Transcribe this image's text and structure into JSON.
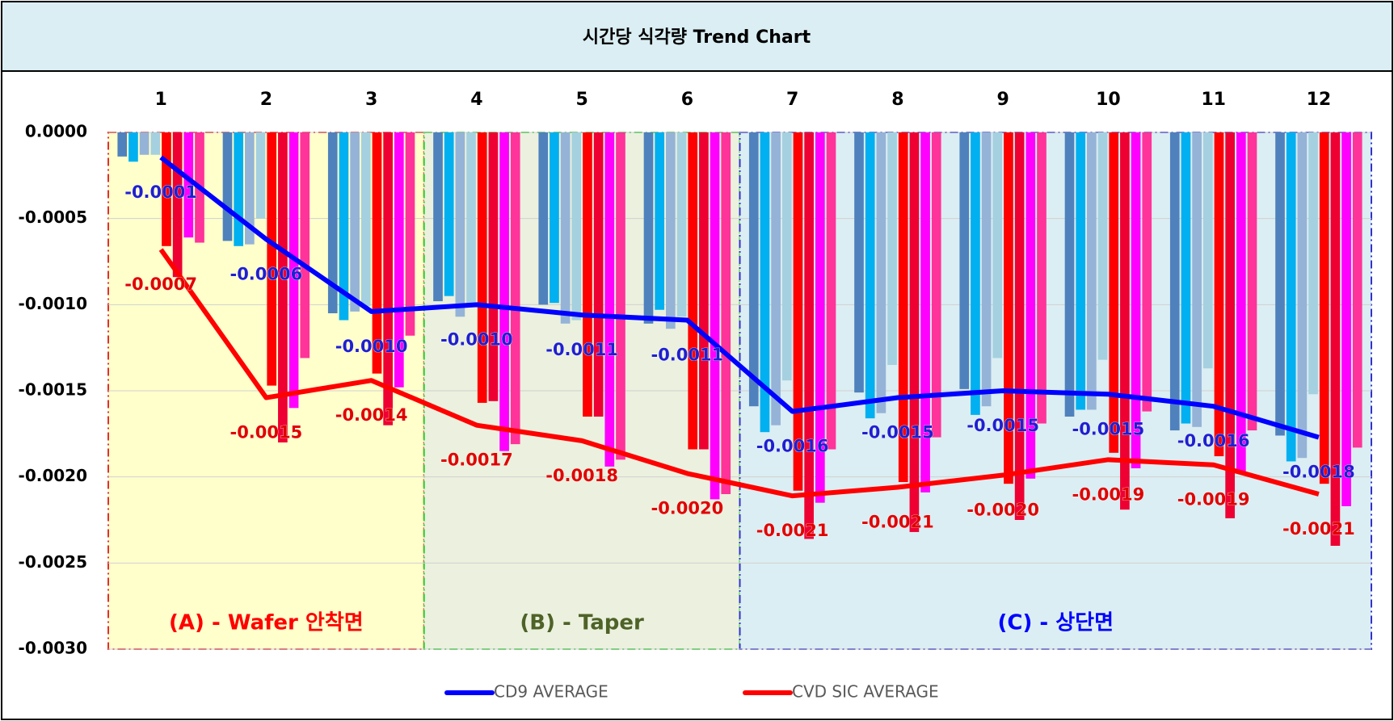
{
  "chart_data": {
    "type": "bar",
    "title": "시간당 식각량 Trend Chart",
    "categories": [
      "1",
      "2",
      "3",
      "4",
      "5",
      "6",
      "7",
      "8",
      "9",
      "10",
      "11",
      "12"
    ],
    "ylim": [
      -0.003,
      0
    ],
    "yticks": [
      {
        "value": 0,
        "label": "0.0000"
      },
      {
        "value": -0.0005,
        "label": "-0.0005"
      },
      {
        "value": -0.001,
        "label": "-0.0010"
      },
      {
        "value": -0.0015,
        "label": "-0.0015"
      },
      {
        "value": -0.002,
        "label": "-0.0020"
      },
      {
        "value": -0.0025,
        "label": "-0.0025"
      },
      {
        "value": -0.003,
        "label": "-0.0030"
      }
    ],
    "grid": true,
    "legend": "bottom",
    "regions": [
      {
        "label": "(A) - Wafer 안착면",
        "first": "1",
        "last": "3",
        "color": "#ff0000",
        "fill": "#ffffcc",
        "border": "#e03030"
      },
      {
        "label": "(B) - Taper",
        "first": "4",
        "last": "6",
        "color": "#4f6228",
        "fill": "#ebf1de",
        "border": "#33cc33"
      },
      {
        "label": "(C) - 상단면",
        "first": "7",
        "last": "12",
        "color": "#0000ff",
        "fill": "#dbeef3",
        "border": "#3333cc"
      }
    ],
    "series": [
      {
        "type": "bar",
        "color": "#4f81bd",
        "values": [
          -0.00014,
          -0.00063,
          -0.00105,
          -0.00098,
          -0.001,
          -0.00111,
          -0.00159,
          -0.00151,
          -0.00149,
          -0.00165,
          -0.00173,
          -0.00176
        ]
      },
      {
        "type": "bar",
        "color": "#00b0f0",
        "values": [
          -0.00017,
          -0.00066,
          -0.00109,
          -0.00095,
          -0.00099,
          -0.00103,
          -0.00174,
          -0.00166,
          -0.00164,
          -0.00161,
          -0.00169,
          -0.00191
        ]
      },
      {
        "type": "bar",
        "color": "#95b3d7",
        "values": [
          -0.00013,
          -0.00065,
          -0.00104,
          -0.00107,
          -0.00111,
          -0.00114,
          -0.0017,
          -0.00163,
          -0.00159,
          -0.00161,
          -0.00171,
          -0.00189
        ]
      },
      {
        "type": "bar",
        "color": "#a5d0df",
        "values": [
          -0.00013,
          -0.0005,
          -0.00101,
          -0.001,
          -0.00109,
          -0.00107,
          -0.00144,
          -0.00135,
          -0.00131,
          -0.00132,
          -0.00137,
          -0.00152
        ]
      },
      {
        "type": "bar",
        "color": "#ff0000",
        "values": [
          -0.00066,
          -0.00147,
          -0.0014,
          -0.00157,
          -0.00165,
          -0.00184,
          -0.00208,
          -0.00203,
          -0.00204,
          -0.00186,
          -0.00188,
          -0.00204
        ]
      },
      {
        "type": "bar",
        "color": "#ee0033",
        "values": [
          -0.00084,
          -0.0018,
          -0.0017,
          -0.00156,
          -0.00165,
          -0.00184,
          -0.00236,
          -0.00232,
          -0.00225,
          -0.00219,
          -0.00224,
          -0.0024
        ]
      },
      {
        "type": "bar",
        "color": "#ff00ff",
        "values": [
          -0.00061,
          -0.0016,
          -0.00148,
          -0.00185,
          -0.00194,
          -0.00213,
          -0.00215,
          -0.00209,
          -0.00201,
          -0.00195,
          -0.00198,
          -0.00217
        ]
      },
      {
        "type": "bar",
        "color": "#ff3399",
        "values": [
          -0.00064,
          -0.00131,
          -0.00118,
          -0.00181,
          -0.0019,
          -0.0021,
          -0.00184,
          -0.00177,
          -0.00169,
          -0.00162,
          -0.00173,
          -0.00183
        ]
      },
      {
        "type": "line",
        "name": "CD9 AVERAGE",
        "color": "#0000ff",
        "label_color": "#1f1fd0",
        "values": [
          -0.000145,
          -0.00062,
          -0.00104,
          -0.001,
          -0.00106,
          -0.00109,
          -0.00162,
          -0.00154,
          -0.0015,
          -0.00152,
          -0.00159,
          -0.00177
        ],
        "value_labels": [
          "-0.0001",
          "-0.0006",
          "-0.0010",
          "-0.0010",
          "-0.0011",
          "-0.0011",
          "-0.0016",
          "-0.0015",
          "-0.0015",
          "-0.0015",
          "-0.0016",
          "-0.0018"
        ]
      },
      {
        "type": "line",
        "name": "CVD SIC AVERAGE",
        "color": "#ff0000",
        "label_color": "#e00000",
        "values": [
          -0.00068,
          -0.00154,
          -0.00144,
          -0.0017,
          -0.00179,
          -0.00198,
          -0.00211,
          -0.00206,
          -0.00199,
          -0.0019,
          -0.00193,
          -0.0021
        ],
        "value_labels": [
          "-0.0007",
          "-0.0015",
          "-0.0014",
          "-0.0017",
          "-0.0018",
          "-0.0020",
          "-0.0021",
          "-0.0021",
          "-0.0020",
          "-0.0019",
          "-0.0019",
          "-0.0021"
        ]
      }
    ]
  }
}
